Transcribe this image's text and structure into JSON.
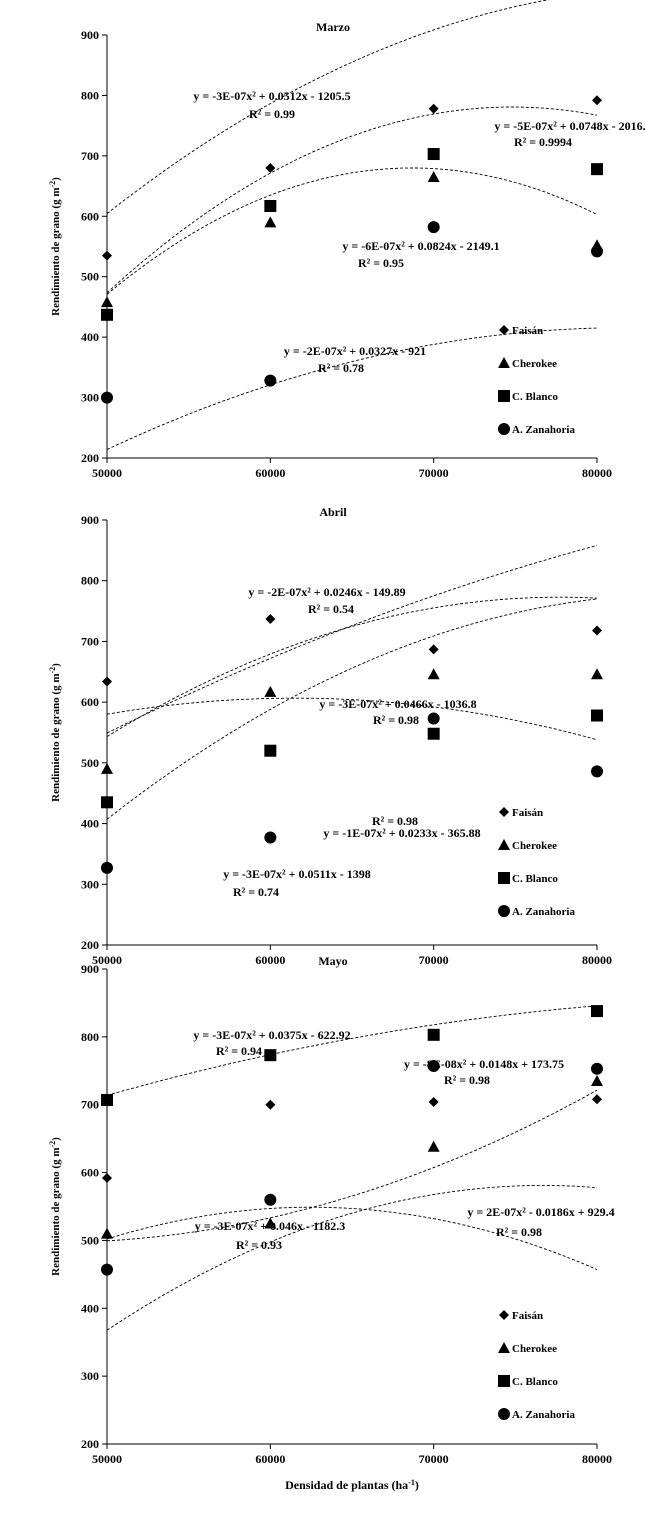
{
  "chart_data": [
    {
      "type": "scatter",
      "title": "Marzo",
      "ylabel": "Rendimiento de grano (g m-2)",
      "xlabel": "",
      "x": [
        50000,
        60000,
        70000,
        80000
      ],
      "xlim": [
        50000,
        80000
      ],
      "ylim": [
        200,
        900
      ],
      "xticks": [
        "50000",
        "60000",
        "70000",
        "80000"
      ],
      "yticks": [
        "200",
        "300",
        "400",
        "500",
        "600",
        "700",
        "800",
        "900"
      ],
      "grid": false,
      "legend_position": "bottom-right",
      "series": [
        {
          "name": "Faisán",
          "marker": "diamond",
          "values": [
            535,
            680,
            778,
            792
          ],
          "equation": "y = -3E-07x² + 0.0512x - 1205.5",
          "r2": "R² = 0.99",
          "fit": [
            -3e-07,
            0.0512,
            -1205.5
          ]
        },
        {
          "name": "Cherokee",
          "marker": "triangle",
          "values": [
            458,
            590,
            665,
            552
          ],
          "equation": "y = -6E-07x² + 0.0824x - 2149.1",
          "r2": "R² = 0.95",
          "fit": [
            -6e-07,
            0.0824,
            -2149.1
          ]
        },
        {
          "name": "C. Blanco",
          "marker": "square",
          "values": [
            437,
            617,
            703,
            678
          ],
          "equation": "y = -5E-07x² + 0.0748x - 2016.7",
          "r2": "R² = 0.9994",
          "fit": [
            -5e-07,
            0.0748,
            -2016.7
          ]
        },
        {
          "name": "A. Zanahoria",
          "marker": "circle",
          "values": [
            300,
            328,
            582,
            542
          ],
          "equation": "y = -2E-07x² + 0.0327x - 921",
          "r2": "R² = 0.78",
          "fit": [
            -2e-07,
            0.0327,
            -921
          ]
        }
      ]
    },
    {
      "type": "scatter",
      "title": "Abril",
      "ylabel": "Rendimiento de grano (g m-2)",
      "xlabel": "",
      "x": [
        50000,
        60000,
        70000,
        80000
      ],
      "xlim": [
        50000,
        80000
      ],
      "ylim": [
        200,
        900
      ],
      "xticks": [
        "50000",
        "60000",
        "70000",
        "80000"
      ],
      "yticks": [
        "200",
        "300",
        "400",
        "500",
        "600",
        "700",
        "800",
        "900"
      ],
      "grid": false,
      "legend_position": "bottom-right",
      "series": [
        {
          "name": "Faisán",
          "marker": "diamond",
          "values": [
            634,
            737,
            687,
            718
          ],
          "equation": "y = -2E-07x² + 0.0246x - 149.89",
          "r2": "R² = 0.54",
          "fit": [
            -2e-07,
            0.0246,
            -149.89
          ]
        },
        {
          "name": "Cherokee",
          "marker": "triangle",
          "values": [
            490,
            617,
            646,
            646
          ],
          "equation": "y = -3E-07x² + 0.0466x - 1036.8",
          "r2": "R² = 0.98",
          "fit": [
            -3e-07,
            0.0466,
            -1036.8
          ]
        },
        {
          "name": "C. Blanco",
          "marker": "square",
          "values": [
            435,
            520,
            548,
            578
          ],
          "equation": "y = -1E-07x² + 0.0233x - 365.88",
          "r2": "R² = 0.98",
          "fit": [
            -1e-07,
            0.0233,
            -365.88
          ]
        },
        {
          "name": "A. Zanahoria",
          "marker": "circle",
          "values": [
            327,
            377,
            573,
            486
          ],
          "equation": "y = -3E-07x² + 0.0511x - 1398",
          "r2": "R² = 0.74",
          "fit": [
            -3e-07,
            0.0511,
            -1398
          ]
        }
      ]
    },
    {
      "type": "scatter",
      "title": "Mayo",
      "ylabel": "Rendimiento de grano (g m-2)",
      "xlabel": "Densidad de plantas (ha-1)",
      "x": [
        50000,
        60000,
        70000,
        80000
      ],
      "xlim": [
        50000,
        80000
      ],
      "ylim": [
        200,
        900
      ],
      "xticks": [
        "50000",
        "60000",
        "70000",
        "80000"
      ],
      "yticks": [
        "200",
        "300",
        "400",
        "500",
        "600",
        "700",
        "800",
        "900"
      ],
      "grid": false,
      "legend_position": "bottom-right",
      "series": [
        {
          "name": "Faisán",
          "marker": "diamond",
          "values": [
            592,
            700,
            704,
            708
          ],
          "equation": "y = -3E-07x² + 0.0375x - 622.92",
          "r2": "R² = 0.94",
          "fit": [
            -3e-07,
            0.0375,
            -622.92
          ]
        },
        {
          "name": "Cherokee",
          "marker": "triangle",
          "values": [
            510,
            525,
            638,
            735
          ],
          "equation": "y = 2E-07x² - 0.0186x + 929.4",
          "r2": "R² = 0.98",
          "fit": [
            2e-07,
            -0.0186,
            929.4
          ]
        },
        {
          "name": "C. Blanco",
          "marker": "square",
          "values": [
            707,
            773,
            803,
            838
          ],
          "equation": "y = -8E-08x² + 0.0148x + 173.75",
          "r2": "R² = 0.98",
          "fit": [
            -8e-08,
            0.0148,
            173.75
          ]
        },
        {
          "name": "A. Zanahoria",
          "marker": "circle",
          "values": [
            457,
            560,
            757,
            753
          ],
          "equation": "y = -3E-07x² + 0.046x - 1182.3",
          "r2": "R² = 0.93",
          "fit": [
            -3e-07,
            0.046,
            -1182.3
          ]
        }
      ]
    }
  ]
}
